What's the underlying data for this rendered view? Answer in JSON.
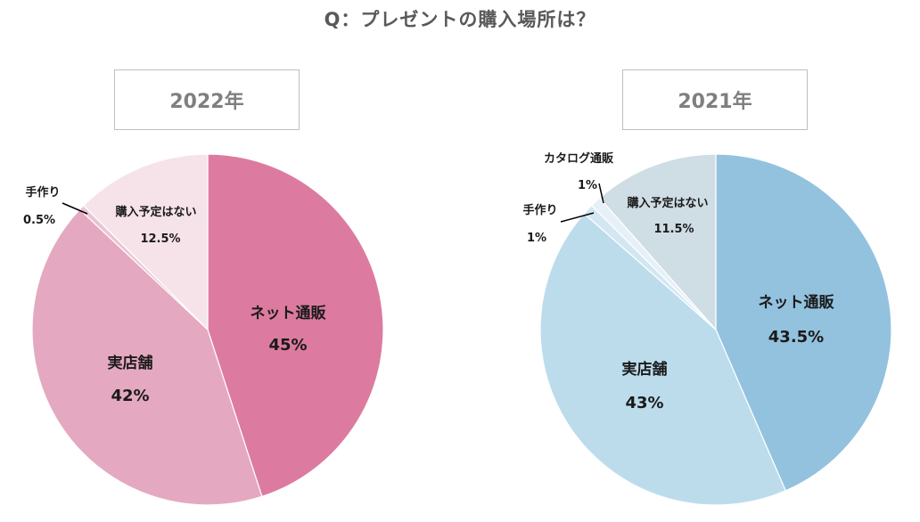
{
  "title": "Q：プレゼントの購入場所は？",
  "chart_data": [
    {
      "type": "pie",
      "title": "2022年",
      "colors": [
        "#dc7b9f",
        "#e4a9c0",
        "#ebc4d2",
        "#f6e3ea"
      ],
      "slices": [
        {
          "name": "ネット通販",
          "value": 45,
          "label": "45%"
        },
        {
          "name": "実店舗",
          "value": 42,
          "label": "42%"
        },
        {
          "name": "手作り",
          "value": 0.5,
          "label": "0.5%"
        },
        {
          "name": "購入予定はない",
          "value": 12.5,
          "label": "12.5%"
        }
      ]
    },
    {
      "type": "pie",
      "title": "2021年",
      "colors": [
        "#93c2df",
        "#bcdcec",
        "#d3e7f2",
        "#e5f0f7",
        "#cfdde4"
      ],
      "slices": [
        {
          "name": "ネット通販",
          "value": 43.5,
          "label": "43.5%"
        },
        {
          "name": "実店舗",
          "value": 43,
          "label": "43%"
        },
        {
          "name": "手作り",
          "value": 1,
          "label": "1%"
        },
        {
          "name": "カタログ通販",
          "value": 1,
          "label": "1%"
        },
        {
          "name": "購入予定はない",
          "value": 11.5,
          "label": "11.5%"
        }
      ]
    }
  ]
}
